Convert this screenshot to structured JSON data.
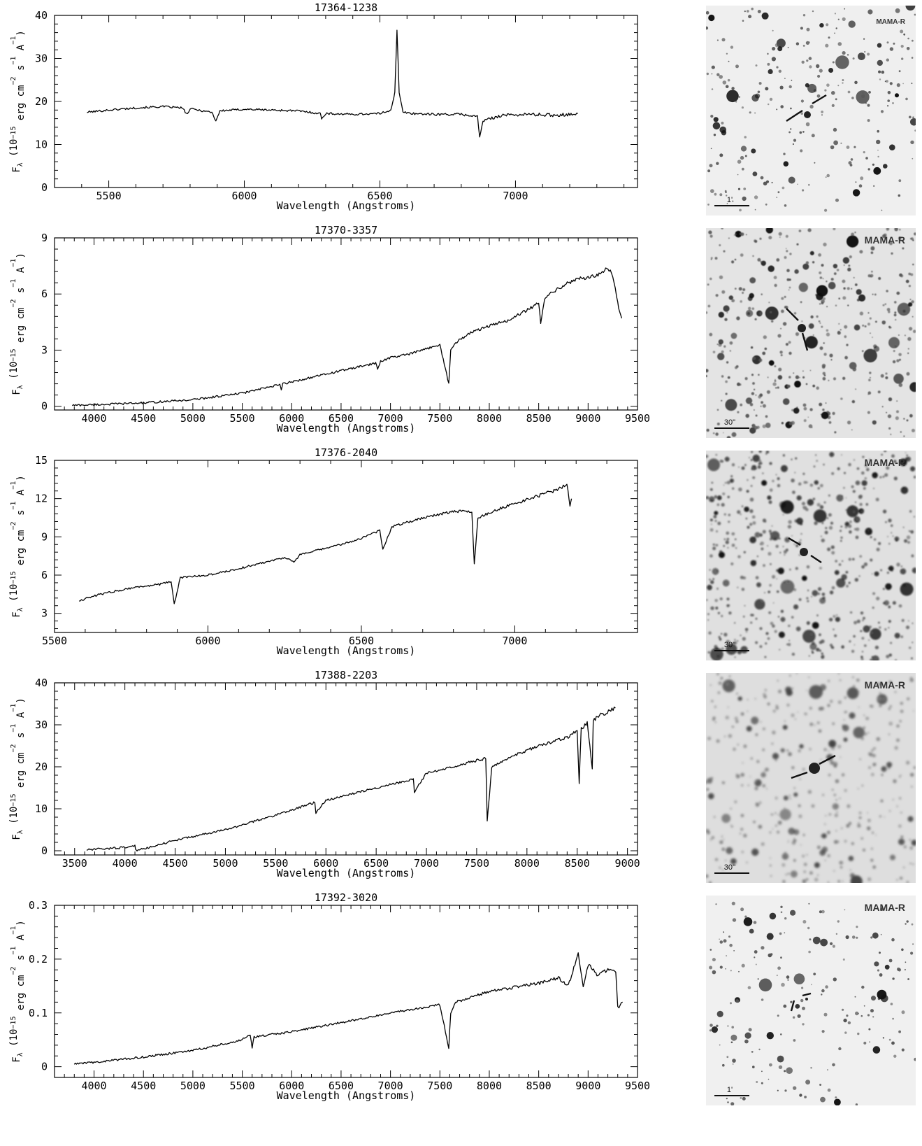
{
  "figure": {
    "panels": [
      {
        "title": "17364-1238",
        "xlabel": "Wavelength (Angstroms)",
        "ylabel_tex": {
          "base": "F",
          "sub": "λ",
          "pre": "(10",
          "exp1": "−15",
          "mid1": " erg cm",
          "exp2": "−2",
          "mid2": " s",
          "exp3": "−1",
          "mid3": " A",
          "exp4": "−1",
          "post": ")"
        },
        "thumb_label": "MAMA-R",
        "scale_label": "1'"
      },
      {
        "title": "17370-3357",
        "xlabel": "Wavelength (Angstroms)",
        "thumb_label": "MAMA-R",
        "scale_label": "30\""
      },
      {
        "title": "17376-2040",
        "xlabel": "Wavelength (Angstroms)",
        "thumb_label": "MAMA-R",
        "scale_label": "30\""
      },
      {
        "title": "17388-2203",
        "xlabel": "Wavelength (Angstroms)",
        "thumb_label": "MAMA-R",
        "scale_label": "30''"
      },
      {
        "title": "17392-3020",
        "xlabel": "Wavelength (Angstroms)",
        "thumb_label": "MAMA-R",
        "scale_label": "1'"
      }
    ],
    "colors": {
      "line": "#000000",
      "thumb_bg": "#eeeeee",
      "star": "#1a1a1a",
      "marker_red": "#cc3355"
    }
  },
  "chart_data": [
    {
      "type": "line",
      "title": "17364-1238",
      "xlabel": "Wavelength (Angstroms)",
      "ylabel": "Fλ (10^-15 erg cm^-2 s^-1 A^-1)",
      "xlim": [
        5300,
        7450
      ],
      "ylim": [
        0,
        40
      ],
      "xticks": [
        5500,
        6000,
        6500,
        7000
      ],
      "yticks": [
        0,
        10,
        20,
        30,
        40
      ],
      "series": [
        {
          "x": [
            5420,
            5500,
            5600,
            5700,
            5770,
            5790,
            5800,
            5880,
            5895,
            5910,
            6000,
            6100,
            6200,
            6280,
            6285,
            6300,
            6400,
            6500,
            6540,
            6555,
            6563,
            6571,
            6585,
            6620,
            6700,
            6800,
            6860,
            6868,
            6880,
            6950,
            7050,
            7150,
            7230
          ],
          "y": [
            17.5,
            18.0,
            18.5,
            18.8,
            18.5,
            17.0,
            18.3,
            17.5,
            15.5,
            17.8,
            18.2,
            18.0,
            17.8,
            17.2,
            16.0,
            17.2,
            17.0,
            17.2,
            18.0,
            22.0,
            36.5,
            22.0,
            17.5,
            17.2,
            17.0,
            17.0,
            16.5,
            11.5,
            15.5,
            16.8,
            17.0,
            16.8,
            17.2
          ]
        }
      ]
    },
    {
      "type": "line",
      "title": "17370-3357",
      "xlabel": "Wavelength (Angstroms)",
      "ylabel": "Fλ (10^-15 erg cm^-2 s^-1 A^-1)",
      "xlim": [
        3600,
        9500
      ],
      "ylim": [
        -0.2,
        9
      ],
      "xticks": [
        4000,
        4500,
        5000,
        5500,
        6000,
        6500,
        7000,
        7500,
        8000,
        8500,
        9000,
        9500
      ],
      "yticks": [
        0,
        3,
        6,
        9
      ],
      "series": [
        {
          "x": [
            3780,
            4000,
            4500,
            5000,
            5500,
            5880,
            5895,
            5910,
            6000,
            6500,
            6850,
            6870,
            6900,
            7000,
            7200,
            7500,
            7590,
            7610,
            7660,
            7800,
            8000,
            8200,
            8400,
            8500,
            8520,
            8560,
            8600,
            8700,
            8800,
            8900,
            9000,
            9100,
            9200,
            9250,
            9300,
            9340
          ],
          "y": [
            0.05,
            0.08,
            0.18,
            0.35,
            0.7,
            1.15,
            0.9,
            1.2,
            1.3,
            1.9,
            2.3,
            2.0,
            2.4,
            2.6,
            2.8,
            3.3,
            1.2,
            3.0,
            3.4,
            3.9,
            4.3,
            4.6,
            5.2,
            5.5,
            4.4,
            5.8,
            6.0,
            6.3,
            6.6,
            6.8,
            6.9,
            7.0,
            7.4,
            7.0,
            5.5,
            4.7
          ]
        }
      ]
    },
    {
      "type": "line",
      "title": "17376-2040",
      "xlabel": "Wavelength (Angstroms)",
      "ylabel": "Fλ (10^-15 erg cm^-2 s^-1 A^-1)",
      "xlim": [
        5500,
        7400
      ],
      "ylim": [
        1.5,
        15
      ],
      "xticks": [
        5500,
        6000,
        6500,
        7000
      ],
      "yticks": [
        3,
        6,
        9,
        12,
        15
      ],
      "series": [
        {
          "x": [
            5580,
            5650,
            5750,
            5850,
            5880,
            5890,
            5895,
            5910,
            6000,
            6100,
            6150,
            6200,
            6250,
            6280,
            6300,
            6400,
            6450,
            6500,
            6560,
            6570,
            6600,
            6700,
            6800,
            6860,
            6868,
            6880,
            6950,
            7050,
            7150,
            7170,
            7180,
            7185
          ],
          "y": [
            4.0,
            4.5,
            5.0,
            5.3,
            5.5,
            3.8,
            4.2,
            5.8,
            6.0,
            6.5,
            6.8,
            7.1,
            7.4,
            7.0,
            7.6,
            8.2,
            8.5,
            8.9,
            9.5,
            8.0,
            9.8,
            10.5,
            11.0,
            11.0,
            6.8,
            10.5,
            11.2,
            12.0,
            12.8,
            13.2,
            11.5,
            12.0
          ]
        }
      ]
    },
    {
      "type": "line",
      "title": "17388-2203",
      "xlabel": "Wavelength (Angstroms)",
      "ylabel": "Fλ (10^-15 erg cm^-2 s^-1 A^-1)",
      "xlim": [
        3300,
        9100
      ],
      "ylim": [
        -1,
        40
      ],
      "xticks": [
        3500,
        4000,
        4500,
        5000,
        5500,
        6000,
        6500,
        7000,
        7500,
        8000,
        8500,
        9000
      ],
      "yticks": [
        0,
        10,
        20,
        30,
        40
      ],
      "series": [
        {
          "x": [
            3620,
            4000,
            4100,
            4110,
            4500,
            5000,
            5500,
            5890,
            5900,
            6000,
            6500,
            6870,
            6880,
            7000,
            7500,
            7590,
            7605,
            7650,
            8000,
            8400,
            8500,
            8520,
            8540,
            8600,
            8650,
            8660,
            8700,
            8800,
            8880
          ],
          "y": [
            0.2,
            0.8,
            1.2,
            0.0,
            2.5,
            5.0,
            8.5,
            11.5,
            9.0,
            12.0,
            15.0,
            17.0,
            14.0,
            18.5,
            21.5,
            22.0,
            7.0,
            20.0,
            24.0,
            27.0,
            28.5,
            16.0,
            29.0,
            30.5,
            19.5,
            31.0,
            32.0,
            33.0,
            34.0
          ]
        }
      ]
    },
    {
      "type": "line",
      "title": "17392-3020",
      "xlabel": "Wavelength (Angstroms)",
      "ylabel": "Fλ (10^-15 erg cm^-2 s^-1 A^-1)",
      "xlim": [
        3600,
        9500
      ],
      "ylim": [
        -0.02,
        0.3
      ],
      "xticks": [
        4000,
        4500,
        5000,
        5500,
        6000,
        6500,
        7000,
        7500,
        8000,
        8500,
        9000,
        9500
      ],
      "yticks": [
        0,
        0.1,
        0.2,
        0.3
      ],
      "series": [
        {
          "x": [
            3800,
            4000,
            4500,
            5000,
            5500,
            5580,
            5600,
            5620,
            6000,
            6500,
            7000,
            7500,
            7590,
            7610,
            7660,
            8000,
            8500,
            8700,
            8800,
            8900,
            8950,
            9000,
            9100,
            9200,
            9280,
            9300,
            9350
          ],
          "y": [
            0.005,
            0.008,
            0.018,
            0.03,
            0.05,
            0.06,
            0.035,
            0.055,
            0.065,
            0.082,
            0.1,
            0.115,
            0.035,
            0.1,
            0.12,
            0.14,
            0.155,
            0.165,
            0.15,
            0.21,
            0.15,
            0.19,
            0.17,
            0.18,
            0.175,
            0.11,
            0.12
          ]
        }
      ]
    }
  ]
}
